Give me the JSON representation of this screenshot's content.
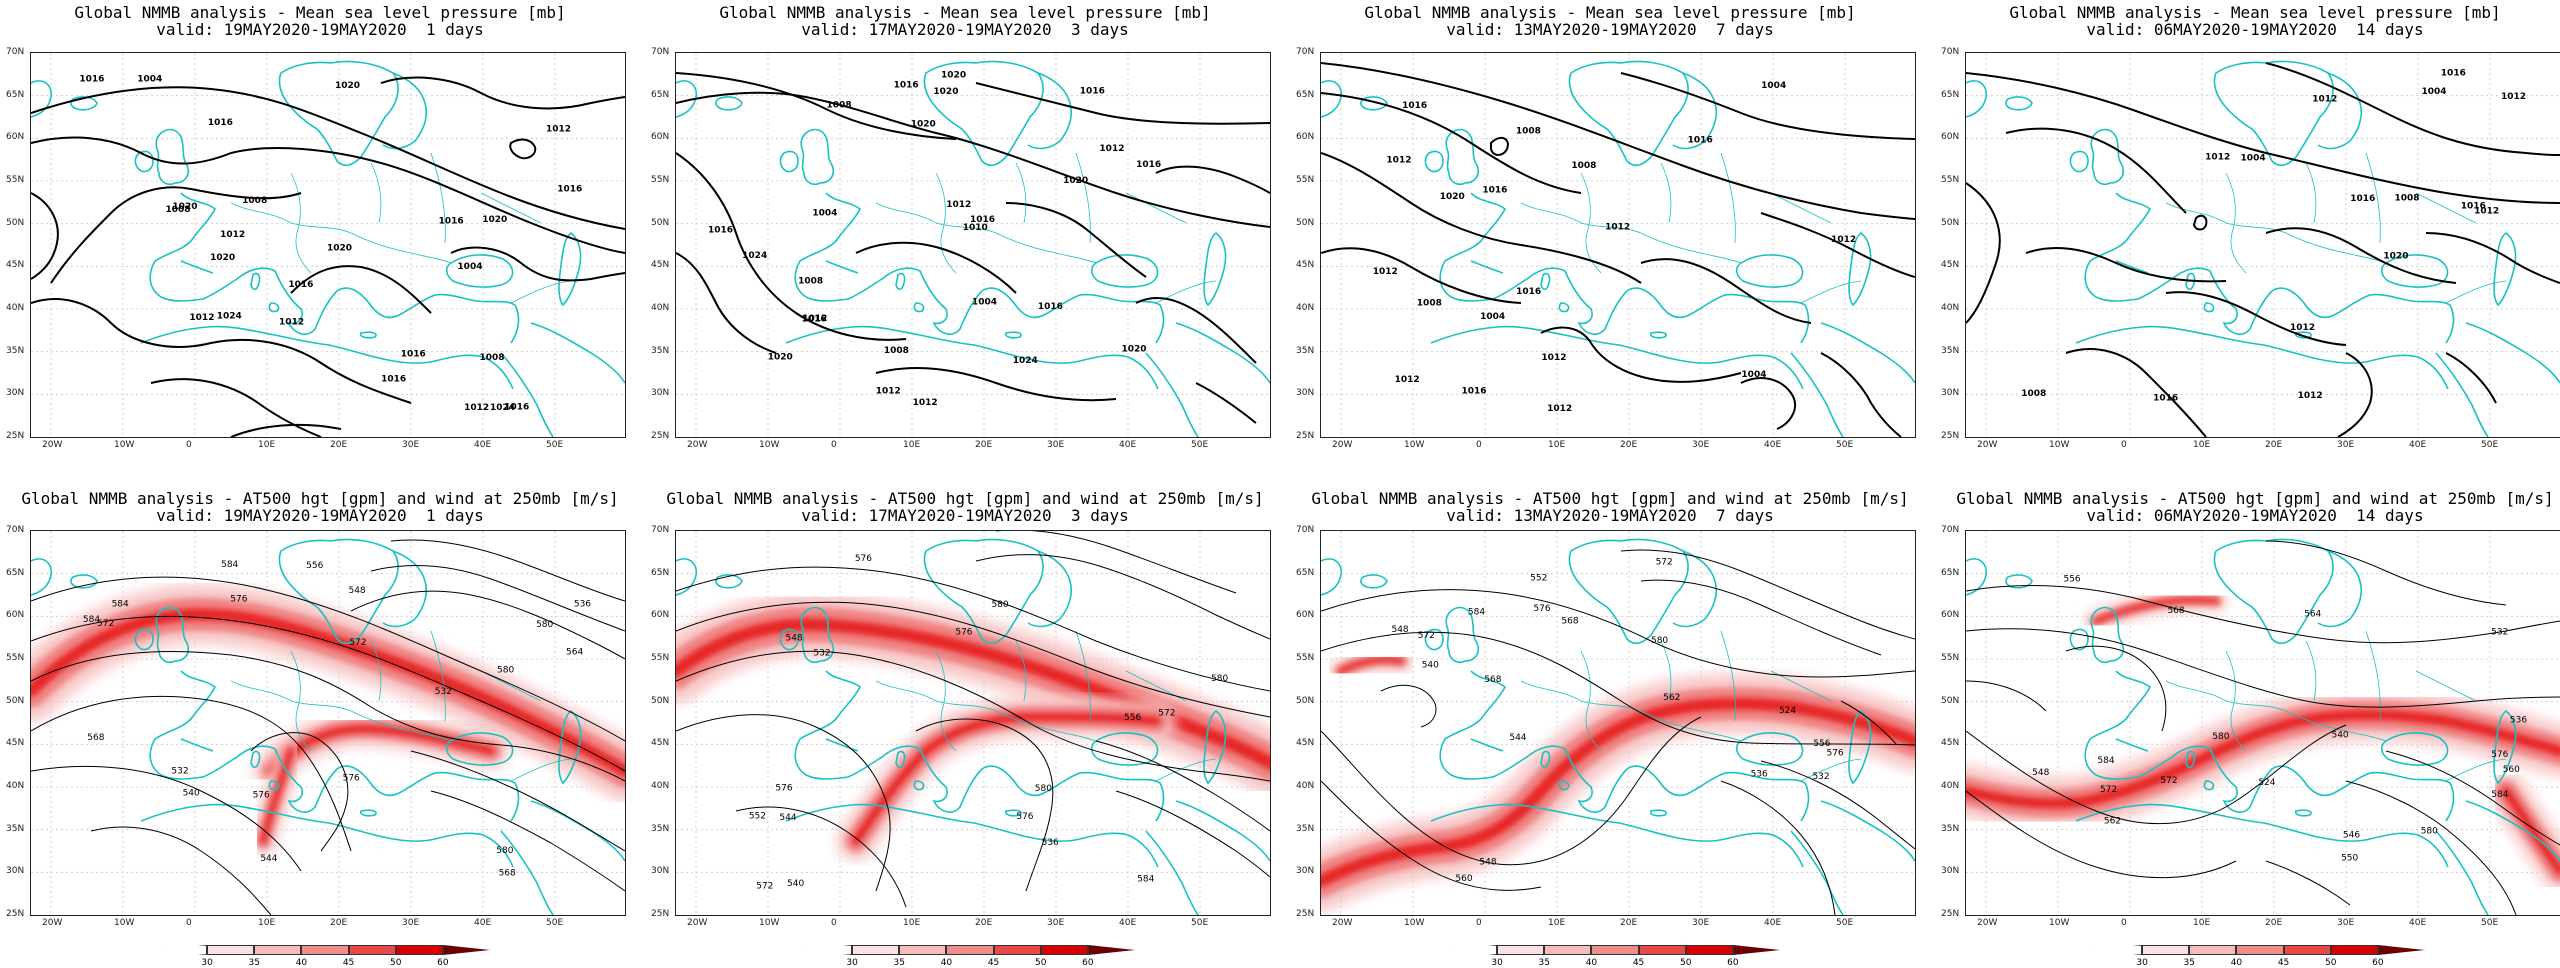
{
  "mslp_title": "Global NMMB analysis - Mean sea level pressure [mb]",
  "wind_title": "Global NMMB analysis - AT500 hgt [gpm] and wind at 250mb [m/s]",
  "lat_labels": [
    "70N",
    "65N",
    "60N",
    "55N",
    "50N",
    "45N",
    "40N",
    "35N",
    "30N",
    "25N"
  ],
  "lon_labels": [
    "20W",
    "10W",
    "0",
    "10E",
    "20E",
    "30E",
    "40E",
    "50E"
  ],
  "colorbar_labels": [
    "30",
    "35",
    "40",
    "45",
    "50",
    "60"
  ],
  "colors": {
    "coast": "#19c2c2",
    "contour": "#000000",
    "wind_light": "#f7c2c2",
    "wind_mid": "#ef7878",
    "wind_dark": "#e30000"
  },
  "panels": [
    {
      "valid": "valid: 19MAY2020-19MAY2020  1 days",
      "mslp_labels": [
        "1016",
        "1008",
        "1004",
        "1004",
        "1016",
        "1016",
        "1012",
        "1020",
        "1024",
        "1016",
        "1020",
        "1020",
        "1016",
        "1012",
        "1012",
        "1016",
        "1020",
        "1016",
        "1012",
        "1008",
        "1024",
        "1020",
        "1016",
        "1012",
        "1008"
      ],
      "wind_labels": [
        "556",
        "548",
        "532",
        "532",
        "536",
        "540",
        "544",
        "564",
        "572",
        "576",
        "580",
        "572",
        "576",
        "580",
        "584",
        "568",
        "576",
        "580",
        "584",
        "568",
        "584"
      ]
    },
    {
      "valid": "valid: 17MAY2020-19MAY2020  3 days",
      "mslp_labels": [
        "1020",
        "1016",
        "1008",
        "1012",
        "1004",
        "1004",
        "1008",
        "1012",
        "1016",
        "1020",
        "1024",
        "1020",
        "1016",
        "1010",
        "1012",
        "1016",
        "1020",
        "1016",
        "1016",
        "1012",
        "1024",
        "1020",
        "1020",
        "1016",
        "1012",
        "1008"
      ],
      "wind_labels": [
        "548",
        "552",
        "556",
        "532",
        "536",
        "540",
        "544",
        "572",
        "576",
        "576",
        "572",
        "576",
        "580",
        "580",
        "576",
        "580",
        "584"
      ]
    },
    {
      "valid": "valid: 13MAY2020-19MAY2020  7 days",
      "mslp_labels": [
        "1004",
        "1004",
        "1008",
        "1004",
        "1020",
        "1008",
        "1012",
        "1012",
        "1012",
        "1016",
        "1016",
        "1012",
        "1016",
        "1016",
        "1012",
        "1012",
        "1016",
        "1012",
        "1008"
      ],
      "wind_labels": [
        "524",
        "562",
        "556",
        "560",
        "544",
        "548",
        "532",
        "536",
        "540",
        "548",
        "552",
        "568",
        "572",
        "576",
        "584",
        "568",
        "572",
        "576",
        "580"
      ]
    },
    {
      "valid": "valid: 06MAY2020-19MAY2020  14 days",
      "mslp_labels": [
        "1004",
        "1008",
        "1012",
        "1020",
        "1004",
        "1008",
        "1016",
        "1012",
        "1016",
        "1012",
        "1012",
        "1016",
        "1016",
        "1012",
        "1012"
      ],
      "wind_labels": [
        "524",
        "556",
        "560",
        "584",
        "532",
        "536",
        "540",
        "546",
        "550",
        "562",
        "564",
        "568",
        "572",
        "548",
        "572",
        "576",
        "580",
        "584",
        "580"
      ]
    }
  ]
}
